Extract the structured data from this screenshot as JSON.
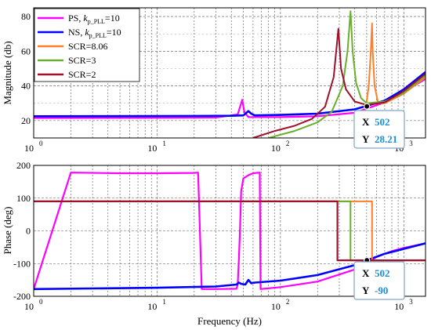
{
  "chart_data": [
    {
      "type": "line",
      "id": "magnitude",
      "xscale": "log",
      "xlim": [
        1,
        1500
      ],
      "ylim": [
        10,
        85
      ],
      "ylabel": "Magnitude (db)",
      "xlabel": "",
      "grid": true,
      "yticks": [
        20,
        40,
        60,
        80
      ],
      "xticks": [
        {
          "v": 1,
          "base": "10",
          "exp": "0"
        },
        {
          "v": 10,
          "base": "10",
          "exp": "1"
        },
        {
          "v": 100,
          "base": "10",
          "exp": "2"
        },
        {
          "v": 1000,
          "base": "10",
          "exp": "3"
        }
      ],
      "legend": {
        "placement": "top-left",
        "entries": [
          {
            "text": "PS, ",
            "italic": "k",
            "sub": "p_PLL",
            "tail": "=10",
            "color": "#ff00ff"
          },
          {
            "text": "NS, ",
            "italic": "k",
            "sub": "p_PLL",
            "tail": "=10",
            "color": "#0000ff"
          },
          {
            "text": "SCR=8.06",
            "color": "#ff7f27"
          },
          {
            "text": "SCR=3",
            "color": "#6aae2d"
          },
          {
            "text": "SCR=2",
            "color": "#a0102a"
          }
        ]
      },
      "series": [
        {
          "name": "PS",
          "color": "#ff00ff",
          "width": 2.2,
          "points": [
            [
              1,
              21.5
            ],
            [
              10,
              21.6
            ],
            [
              30,
              21.8
            ],
            [
              45,
              23.5
            ],
            [
              49,
              32
            ],
            [
              51,
              25
            ],
            [
              55,
              22
            ],
            [
              100,
              22
            ],
            [
              200,
              22.5
            ],
            [
              400,
              24.5
            ],
            [
              700,
              30.5
            ],
            [
              1000,
              36.5
            ],
            [
              1500,
              44
            ]
          ]
        },
        {
          "name": "NS",
          "color": "#0000ff",
          "width": 2.6,
          "points": [
            [
              1,
              22.5
            ],
            [
              10,
              22.6
            ],
            [
              40,
              22.8
            ],
            [
              50,
              23
            ],
            [
              55,
              25.5
            ],
            [
              58,
              24
            ],
            [
              62,
              23
            ],
            [
              100,
              23.3
            ],
            [
              200,
              24
            ],
            [
              400,
              26.5
            ],
            [
              700,
              31.5
            ],
            [
              1000,
              38
            ],
            [
              1500,
              48
            ]
          ]
        },
        {
          "name": "SCR=8.06",
          "color": "#ff7f27",
          "width": 2,
          "points": [
            [
              400,
              10
            ],
            [
              440,
              14
            ],
            [
              480,
              22
            ],
            [
              520,
              40
            ],
            [
              540,
              60
            ],
            [
              553,
              76
            ],
            [
              560,
              60
            ],
            [
              580,
              40
            ],
            [
              620,
              30
            ],
            [
              700,
              30
            ],
            [
              1000,
              35.5
            ],
            [
              1500,
              45
            ]
          ]
        },
        {
          "name": "SCR=3",
          "color": "#6aae2d",
          "width": 2,
          "points": [
            [
              80,
              10
            ],
            [
              130,
              14
            ],
            [
              200,
              19
            ],
            [
              260,
              25
            ],
            [
              320,
              40
            ],
            [
              350,
              60
            ],
            [
              370,
              83
            ],
            [
              385,
              60
            ],
            [
              410,
              42
            ],
            [
              450,
              33
            ],
            [
              500,
              30
            ],
            [
              700,
              31
            ],
            [
              1000,
              36
            ],
            [
              1500,
              46
            ]
          ]
        },
        {
          "name": "SCR=2",
          "color": "#a0102a",
          "width": 2,
          "points": [
            [
              60,
              10
            ],
            [
              90,
              14
            ],
            [
              130,
              17
            ],
            [
              180,
              21
            ],
            [
              230,
              28
            ],
            [
              270,
              45
            ],
            [
              295,
              73
            ],
            [
              310,
              50
            ],
            [
              340,
              38
            ],
            [
              400,
              31
            ],
            [
              500,
              29
            ],
            [
              700,
              30.5
            ],
            [
              1000,
              37
            ],
            [
              1500,
              47
            ]
          ]
        }
      ],
      "marker": {
        "x": 502,
        "y": 28.21
      },
      "datatip": {
        "x_label": "X",
        "x_value": "502",
        "y_label": "Y",
        "y_value": "28.21"
      }
    },
    {
      "type": "line",
      "id": "phase",
      "xscale": "log",
      "xlim": [
        1,
        1500
      ],
      "ylim": [
        -200,
        200
      ],
      "ylabel": "Phase (deg)",
      "xlabel": "Frequency (Hz)",
      "grid": true,
      "yticks": [
        -200,
        -100,
        0,
        100,
        200
      ],
      "xticks": [
        {
          "v": 1,
          "base": "10",
          "exp": "0"
        },
        {
          "v": 10,
          "base": "10",
          "exp": "1"
        },
        {
          "v": 100,
          "base": "10",
          "exp": "2"
        },
        {
          "v": 1000,
          "base": "10",
          "exp": "3"
        }
      ],
      "series": [
        {
          "name": "PS",
          "color": "#ff00ff",
          "width": 2.2,
          "points": [
            [
              1,
              -178
            ],
            [
              2,
              178
            ],
            [
              5,
              176
            ],
            [
              10,
              176
            ],
            [
              20,
              177
            ],
            [
              21.5,
              178
            ],
            [
              23,
              -178
            ],
            [
              30,
              -178
            ],
            [
              44,
              -177
            ],
            [
              45,
              -165
            ],
            [
              46,
              -90
            ],
            [
              47,
              0
            ],
            [
              48,
              120
            ],
            [
              50,
              160
            ],
            [
              55,
              170
            ],
            [
              60,
              176
            ],
            [
              68,
              178
            ],
            [
              69,
              -178
            ],
            [
              100,
              -172
            ],
            [
              200,
              -155
            ],
            [
              400,
              -118
            ],
            [
              600,
              -80
            ],
            [
              800,
              -62
            ],
            [
              1000,
              -52
            ],
            [
              1500,
              -38
            ]
          ]
        },
        {
          "name": "NS",
          "color": "#0000ff",
          "width": 2.6,
          "points": [
            [
              1,
              -178
            ],
            [
              10,
              -174
            ],
            [
              30,
              -170
            ],
            [
              44,
              -164
            ],
            [
              46,
              -158
            ],
            [
              48,
              -162
            ],
            [
              52,
              -164
            ],
            [
              55,
              -150
            ],
            [
              58,
              -160
            ],
            [
              62,
              -158
            ],
            [
              100,
              -152
            ],
            [
              200,
              -135
            ],
            [
              400,
              -105
            ],
            [
              502,
              -90
            ],
            [
              700,
              -70
            ],
            [
              1000,
              -55
            ],
            [
              1500,
              -38
            ]
          ]
        },
        {
          "name": "SCR=8.06",
          "color": "#ff7f27",
          "width": 2,
          "points": [
            [
              1,
              90
            ],
            [
              553,
              90
            ],
            [
              553,
              -90
            ],
            [
              1500,
              -90
            ]
          ]
        },
        {
          "name": "SCR=3",
          "color": "#6aae2d",
          "width": 2,
          "points": [
            [
              1,
              90
            ],
            [
              370,
              90
            ],
            [
              370,
              -90
            ],
            [
              1500,
              -90
            ]
          ]
        },
        {
          "name": "SCR=2",
          "color": "#a0102a",
          "width": 2.2,
          "points": [
            [
              1,
              90
            ],
            [
              290,
              90
            ],
            [
              290,
              -90
            ],
            [
              1500,
              -90
            ]
          ]
        }
      ],
      "marker": {
        "x": 502,
        "y": -90
      },
      "datatip": {
        "x_label": "X",
        "x_value": "502",
        "y_label": "Y",
        "y_value": "-90"
      }
    }
  ]
}
